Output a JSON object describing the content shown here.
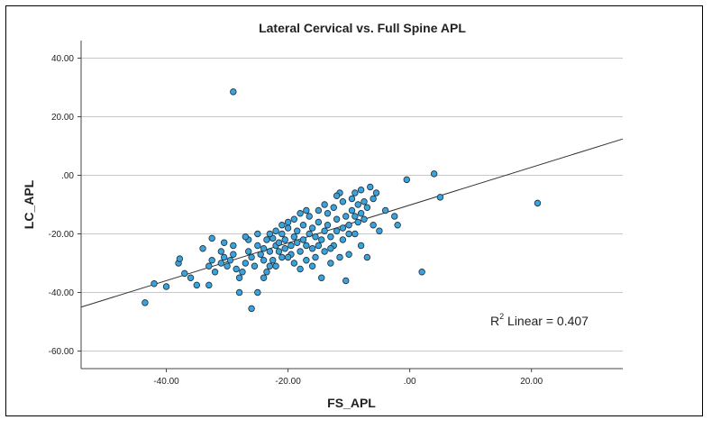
{
  "chart_data": {
    "type": "scatter",
    "title": "Lateral Cervical vs. Full Spine APL",
    "xlabel": "FS_APL",
    "ylabel": "LC_APL",
    "xlim": [
      -54,
      35
    ],
    "ylim": [
      -66,
      46
    ],
    "xticks": [
      -40,
      -20,
      0,
      20
    ],
    "xtick_labels": [
      "-40.00",
      "-20.00",
      ".00",
      "20.00"
    ],
    "yticks": [
      40,
      20,
      0,
      -20,
      -40,
      -60
    ],
    "ytick_labels": [
      "40.00",
      "20.00",
      ".00",
      "-20.00",
      "-40.00",
      "-60.00"
    ],
    "grid": "horizontal",
    "fit_line": {
      "label": "Linear",
      "r2_prefix": "R",
      "r2_sup": "2",
      "r2_text": " Linear = 0.407",
      "x0": -54,
      "y0": -45,
      "x1": 35,
      "y1": 12.4
    },
    "points": [
      [
        -29,
        28.5
      ],
      [
        -43.5,
        -43.5
      ],
      [
        -42,
        -37
      ],
      [
        -40,
        -38
      ],
      [
        -38,
        -30
      ],
      [
        -37.8,
        -28.5
      ],
      [
        -37,
        -33.5
      ],
      [
        -36,
        -35
      ],
      [
        -35,
        -37.5
      ],
      [
        -33,
        -37.5
      ],
      [
        -32.5,
        -29
      ],
      [
        -32.5,
        -21.5
      ],
      [
        -32,
        -33
      ],
      [
        -31,
        -30
      ],
      [
        -30.5,
        -28
      ],
      [
        -30.5,
        -23
      ],
      [
        -30,
        -31
      ],
      [
        -29.5,
        -29
      ],
      [
        -29,
        -27
      ],
      [
        -29,
        -24
      ],
      [
        -28.5,
        -32
      ],
      [
        -28,
        -35
      ],
      [
        -28,
        -40
      ],
      [
        -27.5,
        -33
      ],
      [
        -27,
        -30
      ],
      [
        -26.5,
        -26
      ],
      [
        -26.5,
        -22
      ],
      [
        -26,
        -45.5
      ],
      [
        -26,
        -28
      ],
      [
        -25.5,
        -31
      ],
      [
        -25,
        -40
      ],
      [
        -25,
        -24
      ],
      [
        -25,
        -20
      ],
      [
        -24.5,
        -27
      ],
      [
        -24,
        -29
      ],
      [
        -24,
        -25
      ],
      [
        -23.5,
        -22
      ],
      [
        -23.5,
        -33
      ],
      [
        -23,
        -31
      ],
      [
        -23,
        -26
      ],
      [
        -22.5,
        -21.5
      ],
      [
        -22.5,
        -29
      ],
      [
        -22,
        -24
      ],
      [
        -22,
        -19
      ],
      [
        -21.5,
        -26
      ],
      [
        -21.5,
        -23
      ],
      [
        -21,
        -28
      ],
      [
        -21,
        -20
      ],
      [
        -20.5,
        -25
      ],
      [
        -20.5,
        -22
      ],
      [
        -20,
        -18
      ],
      [
        -20,
        -16
      ],
      [
        -19.5,
        -27
      ],
      [
        -19.5,
        -24
      ],
      [
        -19,
        -21
      ],
      [
        -19,
        -30
      ],
      [
        -18.5,
        -23
      ],
      [
        -18.5,
        -19
      ],
      [
        -18,
        -13
      ],
      [
        -18,
        -26
      ],
      [
        -17.5,
        -22
      ],
      [
        -17.5,
        -17
      ],
      [
        -17,
        -29
      ],
      [
        -17,
        -24
      ],
      [
        -16.5,
        -20
      ],
      [
        -16.5,
        -14
      ],
      [
        -16,
        -25
      ],
      [
        -16,
        -18
      ],
      [
        -15.5,
        -21
      ],
      [
        -15.5,
        -28
      ],
      [
        -15,
        -16
      ],
      [
        -15,
        -12
      ],
      [
        -14.5,
        -22
      ],
      [
        -14.5,
        -35
      ],
      [
        -14,
        -19
      ],
      [
        -14,
        -26
      ],
      [
        -13.5,
        -13
      ],
      [
        -13.5,
        -17
      ],
      [
        -13,
        -21
      ],
      [
        -13,
        -30
      ],
      [
        -12.5,
        -24
      ],
      [
        -12.5,
        -11
      ],
      [
        -12,
        -15
      ],
      [
        -12,
        -19
      ],
      [
        -11.5,
        -28
      ],
      [
        -11.5,
        -6
      ],
      [
        -11,
        -9
      ],
      [
        -11,
        -22
      ],
      [
        -10.5,
        -14
      ],
      [
        -10.5,
        -36
      ],
      [
        -10,
        -17
      ],
      [
        -10,
        -27
      ],
      [
        -9.5,
        -8
      ],
      [
        -9.5,
        -12
      ],
      [
        -9,
        -20
      ],
      [
        -9,
        -6
      ],
      [
        -8.5,
        -10
      ],
      [
        -8.5,
        -16
      ],
      [
        -8,
        -13
      ],
      [
        -8,
        -5
      ],
      [
        -7.5,
        -9
      ],
      [
        -7,
        -28
      ],
      [
        -7,
        -11
      ],
      [
        -6.5,
        -4
      ],
      [
        -6,
        -8
      ],
      [
        -6,
        -17
      ],
      [
        -5.5,
        -6
      ],
      [
        -5,
        -19
      ],
      [
        -4,
        -12
      ],
      [
        -2.5,
        -14
      ],
      [
        -2,
        -17
      ],
      [
        -0.5,
        -1.5
      ],
      [
        2,
        -33
      ],
      [
        4,
        0.5
      ],
      [
        5,
        -7.5
      ],
      [
        21,
        -9.5
      ],
      [
        -34,
        -25
      ],
      [
        -33,
        -31
      ],
      [
        -31,
        -26
      ],
      [
        -27,
        -21
      ],
      [
        -24,
        -35
      ],
      [
        -23,
        -20
      ],
      [
        -22,
        -31
      ],
      [
        -21,
        -17
      ],
      [
        -20,
        -28
      ],
      [
        -19,
        -15
      ],
      [
        -18,
        -32
      ],
      [
        -17,
        -12
      ],
      [
        -16,
        -31
      ],
      [
        -15,
        -24
      ],
      [
        -14,
        -10
      ],
      [
        -13,
        -25
      ],
      [
        -12,
        -7
      ],
      [
        -11,
        -18
      ],
      [
        -10,
        -20
      ],
      [
        -9,
        -14
      ],
      [
        -8,
        -24
      ],
      [
        -7.5,
        -15
      ]
    ]
  }
}
